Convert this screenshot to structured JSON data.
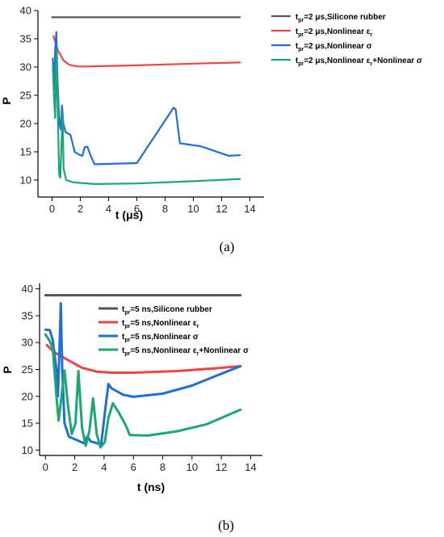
{
  "chart_data": [
    {
      "type": "line",
      "panel_label": "(a)",
      "xlabel": "t (μs)",
      "ylabel": "P",
      "xlim": [
        -1,
        15
      ],
      "ylim": [
        7,
        40
      ],
      "xticks": [
        0,
        2,
        4,
        6,
        8,
        10,
        12,
        14
      ],
      "yticks": [
        10,
        15,
        20,
        25,
        30,
        35,
        40
      ],
      "legend_placement": "top-right",
      "series": [
        {
          "color": "#555555",
          "legend": {
            "pre": "t",
            "sub": "pr",
            "post": "=2 μs,Silicone rubber"
          },
          "points": [
            [
              0,
              38.8
            ],
            [
              13.3,
              38.8
            ]
          ]
        },
        {
          "color": "#ee4444",
          "legend": {
            "pre": "t",
            "sub": "pr",
            "post": "=2 μs,Nonlinear ε",
            "sub2": "r"
          },
          "points": [
            [
              0.1,
              35.5
            ],
            [
              0.4,
              33
            ],
            [
              0.8,
              31.2
            ],
            [
              1.2,
              30.4
            ],
            [
              1.8,
              30.1
            ],
            [
              2.5,
              30.1
            ],
            [
              6,
              30.3
            ],
            [
              10,
              30.6
            ],
            [
              13.3,
              30.8
            ]
          ]
        },
        {
          "color": "#1f6fd6",
          "legend": {
            "pre": "t",
            "sub": "pr",
            "post": "=2 μs,Nonlinear σ"
          },
          "points": [
            [
              0.05,
              31.5
            ],
            [
              0.15,
              26
            ],
            [
              0.22,
              33
            ],
            [
              0.3,
              36.2
            ],
            [
              0.38,
              28
            ],
            [
              0.5,
              20.5
            ],
            [
              0.6,
              19
            ],
            [
              0.7,
              23.2
            ],
            [
              0.8,
              20
            ],
            [
              0.95,
              18.5
            ],
            [
              1.3,
              18
            ],
            [
              1.6,
              15
            ],
            [
              1.9,
              14.5
            ],
            [
              2.15,
              14.3
            ],
            [
              2.3,
              15.8
            ],
            [
              2.5,
              15.9
            ],
            [
              2.7,
              14.5
            ],
            [
              3,
              12.8
            ],
            [
              6,
              13
            ],
            [
              8.6,
              22.8
            ],
            [
              8.75,
              22.5
            ],
            [
              9.05,
              16.5
            ],
            [
              10.5,
              16
            ],
            [
              12.5,
              14.3
            ],
            [
              13.3,
              14.4
            ]
          ]
        },
        {
          "color": "#1aa774",
          "legend": {
            "pre": "t",
            "sub": "pr",
            "post": "=2 μs,Nonlinear ε",
            "sub2": "r",
            "post2": "+Nonlinear σ"
          },
          "points": [
            [
              0.05,
              30
            ],
            [
              0.15,
              24
            ],
            [
              0.22,
              21
            ],
            [
              0.32,
              33
            ],
            [
              0.4,
              22
            ],
            [
              0.5,
              11
            ],
            [
              0.58,
              10.4
            ],
            [
              0.66,
              16
            ],
            [
              0.74,
              22
            ],
            [
              0.82,
              12
            ],
            [
              1,
              10
            ],
            [
              1.5,
              9.6
            ],
            [
              3,
              9.3
            ],
            [
              6,
              9.4
            ],
            [
              10,
              9.8
            ],
            [
              13.3,
              10.2
            ]
          ]
        }
      ]
    },
    {
      "type": "line",
      "panel_label": "(b)",
      "xlabel": "t (ns)",
      "ylabel": "P",
      "xlim": [
        -0.4,
        14.8
      ],
      "ylim": [
        9,
        41
      ],
      "xticks": [
        0,
        2,
        4,
        6,
        8,
        10,
        12,
        14
      ],
      "yticks": [
        10,
        15,
        20,
        25,
        30,
        35,
        40
      ],
      "legend_placement": "top-right",
      "series": [
        {
          "color": "#555555",
          "legend": {
            "pre": "t",
            "sub": "pr",
            "post": "=5 ns,Silicone rubber"
          },
          "points": [
            [
              0,
              38.8
            ],
            [
              13.3,
              38.8
            ]
          ]
        },
        {
          "color": "#ee4444",
          "legend": {
            "pre": "t",
            "sub": "pr",
            "post": "=5 ns,Nonlinear ε",
            "sub2": "r"
          },
          "points": [
            [
              0.1,
              29.5
            ],
            [
              0.6,
              28.2
            ],
            [
              1.5,
              26.8
            ],
            [
              2.5,
              25.3
            ],
            [
              3.5,
              24.6
            ],
            [
              4.5,
              24.4
            ],
            [
              6,
              24.4
            ],
            [
              9,
              24.7
            ],
            [
              11.5,
              25.2
            ],
            [
              13.3,
              25.6
            ]
          ]
        },
        {
          "color": "#1f6fd6",
          "legend": {
            "pre": "t",
            "sub": "pr",
            "post": "=5 ns,Nonlinear σ"
          },
          "points": [
            [
              0,
              32.4
            ],
            [
              0.3,
              32.3
            ],
            [
              0.5,
              30.5
            ],
            [
              0.75,
              25
            ],
            [
              0.85,
              20
            ],
            [
              0.95,
              28
            ],
            [
              1.05,
              37.3
            ],
            [
              1.15,
              25
            ],
            [
              1.3,
              15
            ],
            [
              1.6,
              12.5
            ],
            [
              2.2,
              11.8
            ],
            [
              2.6,
              11.3
            ],
            [
              2.85,
              12.5
            ],
            [
              3.1,
              11.6
            ],
            [
              3.5,
              11.3
            ],
            [
              3.8,
              11
            ],
            [
              4.1,
              18
            ],
            [
              4.3,
              22.3
            ],
            [
              4.5,
              21.5
            ],
            [
              5.3,
              20.3
            ],
            [
              6,
              19.9
            ],
            [
              8,
              20.5
            ],
            [
              10,
              22
            ],
            [
              12,
              24.2
            ],
            [
              13.3,
              25.6
            ]
          ]
        },
        {
          "color": "#1aa774",
          "legend": {
            "pre": "t",
            "sub": "pr",
            "post": "=5 ns,Nonlinear ε",
            "sub2": "r",
            "post2": "+Nonlinear σ"
          },
          "points": [
            [
              0,
              31.5
            ],
            [
              0.25,
              30.5
            ],
            [
              0.5,
              29
            ],
            [
              0.75,
              20
            ],
            [
              0.9,
              15.5
            ],
            [
              1.1,
              20
            ],
            [
              1.3,
              24.8
            ],
            [
              1.55,
              18
            ],
            [
              1.8,
              13
            ],
            [
              2.05,
              15
            ],
            [
              2.25,
              24.7
            ],
            [
              2.5,
              14
            ],
            [
              2.75,
              10.8
            ],
            [
              3,
              13.5
            ],
            [
              3.25,
              19.6
            ],
            [
              3.5,
              13
            ],
            [
              3.75,
              10.5
            ],
            [
              4.05,
              11.5
            ],
            [
              4.3,
              16
            ],
            [
              4.6,
              18.7
            ],
            [
              5,
              17
            ],
            [
              5.5,
              14.5
            ],
            [
              5.75,
              12.8
            ],
            [
              7,
              12.7
            ],
            [
              9,
              13.5
            ],
            [
              11,
              14.8
            ],
            [
              13.3,
              17.5
            ]
          ]
        }
      ]
    }
  ]
}
